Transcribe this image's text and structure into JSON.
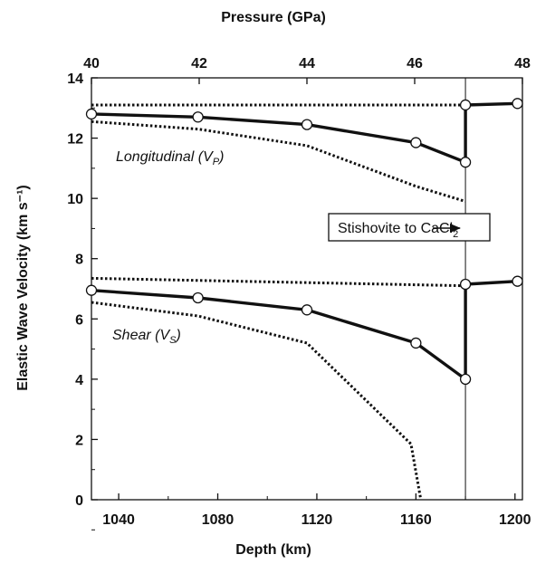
{
  "chart_data": {
    "type": "line",
    "title": "",
    "xlabel": "Depth (km)",
    "x2label": "Pressure (GPa)",
    "ylabel": "Elastic Wave Velocity (km s⁻¹)",
    "xlim": [
      1029,
      1203
    ],
    "ylim": [
      0,
      14
    ],
    "xticks": [
      "1040",
      "1080",
      "1120",
      "1160",
      "1200"
    ],
    "x2ticks": [
      "40",
      "42",
      "44",
      "46",
      "48"
    ],
    "yticks": [
      "0",
      "2",
      "4",
      "6",
      "8",
      "10",
      "12",
      "14"
    ],
    "grid": false,
    "transition_depth": 1180,
    "series": [
      {
        "name": "Longitudinal (VP)",
        "label_main": "Longitudinal (V",
        "label_sub": "P",
        "label_end": ")",
        "style": "solid",
        "markers": true,
        "x": [
          1029,
          1072,
          1116,
          1160,
          1180,
          1180,
          1201
        ],
        "y": [
          12.8,
          12.7,
          12.45,
          11.85,
          11.2,
          13.1,
          13.15
        ]
      },
      {
        "name": "VP upper bound",
        "style": "dotted",
        "x": [
          1029,
          1180
        ],
        "y": [
          13.1,
          13.1
        ]
      },
      {
        "name": "VP lower bound",
        "style": "dotted",
        "x": [
          1029,
          1072,
          1116,
          1160,
          1180
        ],
        "y": [
          12.55,
          12.3,
          11.75,
          10.4,
          9.9
        ]
      },
      {
        "name": "Shear (VS)",
        "label_main": "Shear (V",
        "label_sub": "S",
        "label_end": ")",
        "style": "solid",
        "markers": true,
        "x": [
          1029,
          1072,
          1116,
          1160,
          1180,
          1180,
          1201
        ],
        "y": [
          6.95,
          6.7,
          6.3,
          5.2,
          4.0,
          7.15,
          7.25
        ]
      },
      {
        "name": "VS upper bound",
        "style": "dotted",
        "x": [
          1029,
          1180
        ],
        "y": [
          7.35,
          7.1
        ]
      },
      {
        "name": "VS lower bound",
        "style": "dotted",
        "x": [
          1029,
          1072,
          1116,
          1158,
          1162
        ],
        "y": [
          6.55,
          6.1,
          5.2,
          1.85,
          0
        ]
      }
    ],
    "annotation": {
      "main": "Stishovite to CaCl",
      "sub": "2",
      "arrow_to": "transition line"
    }
  }
}
